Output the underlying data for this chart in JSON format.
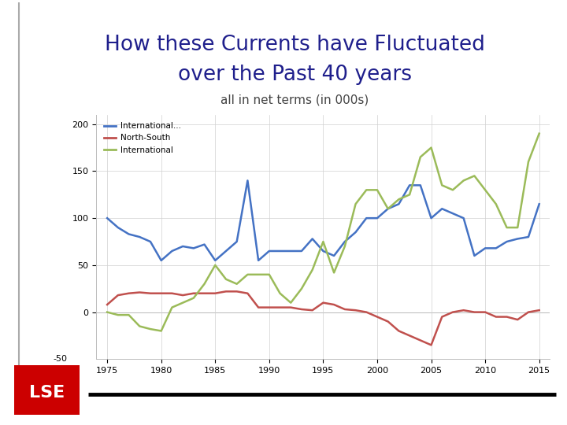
{
  "title_line1": "How these Currents have Fluctuated",
  "title_line2": "over the Past 40 years",
  "subtitle": "all in net terms (in 000s)",
  "title_color": "#1f1f8c",
  "subtitle_color": "#444444",
  "title_fontsize": 19,
  "subtitle_fontsize": 11,
  "ylim": [
    -50,
    210
  ],
  "yticks": [
    0,
    50,
    100,
    150,
    200
  ],
  "ytick_labels": [
    "0",
    "50",
    "100",
    "150",
    "200"
  ],
  "xticks": [
    1975,
    1980,
    1985,
    1990,
    1995,
    2000,
    2005,
    2010,
    2015
  ],
  "legend_labels": [
    "International...",
    "North-South",
    "International"
  ],
  "line_colors": [
    "#4472C4",
    "#C0504D",
    "#9BBB59"
  ],
  "years": [
    1975,
    1976,
    1977,
    1978,
    1979,
    1980,
    1981,
    1982,
    1983,
    1984,
    1985,
    1986,
    1987,
    1988,
    1989,
    1990,
    1991,
    1992,
    1993,
    1994,
    1995,
    1996,
    1997,
    1998,
    1999,
    2000,
    2001,
    2002,
    2003,
    2004,
    2005,
    2006,
    2007,
    2008,
    2009,
    2010,
    2011,
    2012,
    2013,
    2014,
    2015
  ],
  "blue": [
    100,
    90,
    83,
    80,
    75,
    55,
    65,
    70,
    68,
    72,
    55,
    65,
    75,
    140,
    55,
    65,
    65,
    65,
    65,
    78,
    65,
    60,
    75,
    85,
    100,
    100,
    110,
    115,
    135,
    135,
    100,
    110,
    105,
    100,
    60,
    68,
    68,
    75,
    78,
    80,
    115
  ],
  "red": [
    8,
    18,
    20,
    21,
    20,
    20,
    20,
    18,
    20,
    20,
    20,
    22,
    22,
    20,
    5,
    5,
    5,
    5,
    3,
    2,
    10,
    8,
    3,
    2,
    0,
    -5,
    -10,
    -20,
    -25,
    -30,
    -35,
    -5,
    0,
    2,
    0,
    0,
    -5,
    -5,
    -8,
    0,
    2
  ],
  "green": [
    0,
    -3,
    -3,
    -15,
    -18,
    -20,
    5,
    10,
    15,
    30,
    50,
    35,
    30,
    40,
    40,
    40,
    20,
    10,
    25,
    45,
    75,
    42,
    70,
    115,
    130,
    130,
    110,
    120,
    125,
    165,
    175,
    135,
    130,
    140,
    145,
    130,
    115,
    90,
    90,
    160,
    190
  ],
  "lse_color": "#cc0000",
  "bg_color": "#ffffff"
}
